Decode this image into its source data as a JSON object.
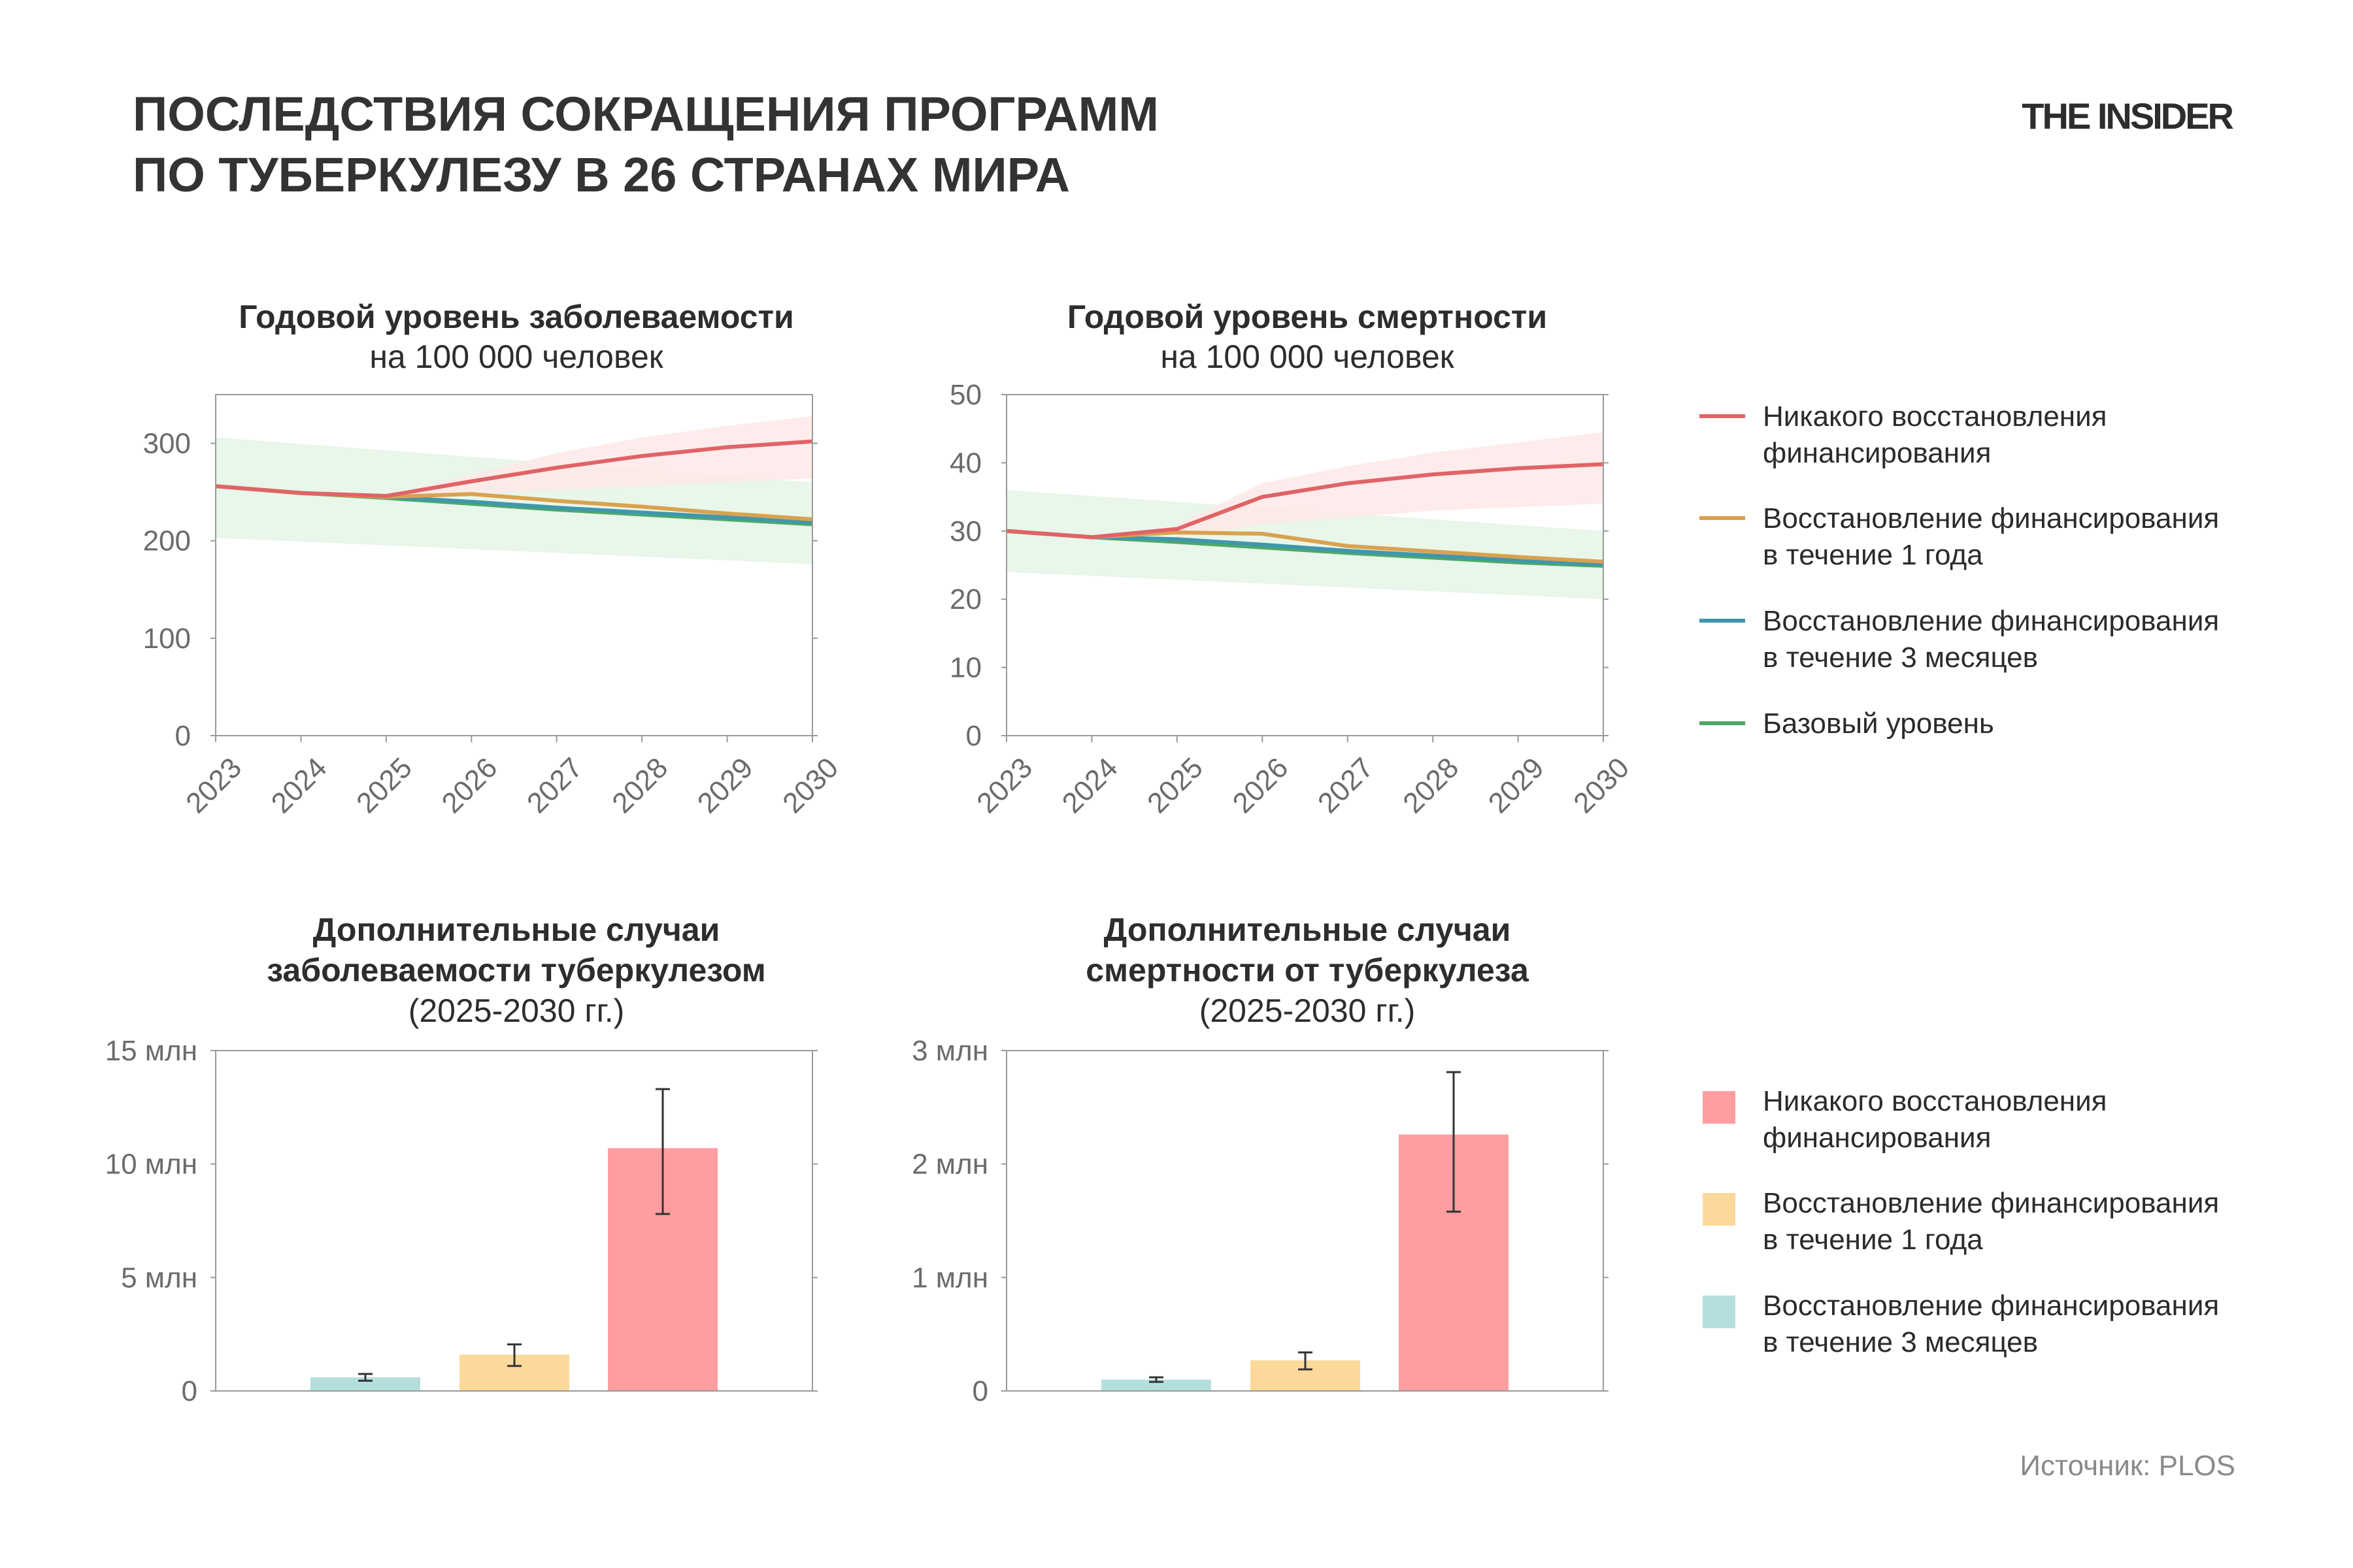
{
  "header": {
    "title_line1": "ПОСЛЕДСТВИЯ СОКРАЩЕНИЯ ПРОГРАММ",
    "title_line2": "ПО ТУБЕРКУЛЕЗУ В 26 СТРАНАХ МИРА",
    "brand": "THE INSIDER"
  },
  "footer": {
    "source": "Источник: PLOS"
  },
  "colors": {
    "red": "#e06366",
    "orange": "#d9a24f",
    "blue": "#3f97ad",
    "green": "#4ea866",
    "band_red": "#fde9e8",
    "band_green": "#e5f4e6",
    "bar_red": "#ff9ea0",
    "bar_orange": "#fcd99b",
    "bar_teal": "#b4dfdd",
    "axis": "#9a9a9a",
    "errorbar": "#333333"
  },
  "legend_lines": [
    {
      "line1": "Никакого восстановления",
      "line2": "финансирования",
      "color": "#e06366"
    },
    {
      "line1": "Восстановление финансирования",
      "line2": "в течение 1 года",
      "color": "#d9a24f"
    },
    {
      "line1": "Восстановление финансирования",
      "line2": "в течение 3 месяцев",
      "color": "#3f97ad"
    },
    {
      "line1": "Базовый уровень",
      "line2": "",
      "color": "#4ea866"
    }
  ],
  "legend_bars": [
    {
      "line1": "Никакого восстановления",
      "line2": "финансирования",
      "color": "#ff9ea0"
    },
    {
      "line1": "Восстановление финансирования",
      "line2": "в течение 1 года",
      "color": "#fcd99b"
    },
    {
      "line1": "Восстановление финансирования",
      "line2": "в течение 3 месяцев",
      "color": "#b4dfdd"
    }
  ],
  "chart_data": [
    {
      "type": "line",
      "title_line1": "Годовой уровень заболеваемости",
      "title_line2": "на 100 000 человек",
      "x": [
        2023,
        2024,
        2025,
        2026,
        2027,
        2028,
        2029,
        2030
      ],
      "x_tick_labels": [
        "2023",
        "2024",
        "2025",
        "2026",
        "2027",
        "2028",
        "2029",
        "2030"
      ],
      "ylim": [
        0,
        350
      ],
      "y_ticks": [
        0,
        100,
        200,
        300
      ],
      "y_tick_labels": [
        "0",
        "100",
        "200",
        "300"
      ],
      "grid": false,
      "bands": [
        {
          "color": "#e5f4e6",
          "x": [
            2023,
            2030
          ],
          "lower": [
            203,
            176
          ],
          "upper": [
            306,
            260
          ]
        },
        {
          "color": "#fde9e8",
          "x": [
            2025,
            2026,
            2027,
            2028,
            2029,
            2030
          ],
          "lower": [
            246,
            248,
            252,
            256,
            260,
            264
          ],
          "upper": [
            246,
            268,
            290,
            306,
            318,
            328
          ]
        }
      ],
      "series": [
        {
          "color": "#4ea866",
          "values": [
            256,
            249,
            244,
            238,
            232,
            227,
            222,
            217
          ]
        },
        {
          "color": "#3f97ad",
          "values": [
            256,
            249,
            245,
            240,
            234,
            229,
            224,
            219
          ]
        },
        {
          "color": "#d9a24f",
          "values": [
            256,
            249,
            245,
            248,
            241,
            235,
            228,
            222
          ]
        },
        {
          "color": "#e06366",
          "values": [
            256,
            249,
            246,
            261,
            275,
            287,
            296,
            302
          ]
        }
      ]
    },
    {
      "type": "line",
      "title_line1": "Годовой уровень смертности",
      "title_line2": "на 100 000 человек",
      "x": [
        2023,
        2024,
        2025,
        2026,
        2027,
        2028,
        2029,
        2030
      ],
      "x_tick_labels": [
        "2023",
        "2024",
        "2025",
        "2026",
        "2027",
        "2028",
        "2029",
        "2030"
      ],
      "ylim": [
        0,
        50
      ],
      "y_ticks": [
        0,
        10,
        20,
        30,
        40,
        50
      ],
      "y_tick_labels": [
        "0",
        "10",
        "20",
        "30",
        "40",
        "50"
      ],
      "grid": false,
      "bands": [
        {
          "color": "#e5f4e6",
          "x": [
            2023,
            2030
          ],
          "lower": [
            24,
            20
          ],
          "upper": [
            36,
            30
          ]
        },
        {
          "color": "#fde9e8",
          "x": [
            2025,
            2026,
            2027,
            2028,
            2029,
            2030
          ],
          "lower": [
            29,
            31,
            32,
            33,
            33.5,
            34
          ],
          "upper": [
            31,
            37,
            39.5,
            41.5,
            43,
            44.5
          ]
        }
      ],
      "series": [
        {
          "color": "#4ea866",
          "values": [
            30,
            29.1,
            28.4,
            27.6,
            26.8,
            26.1,
            25.4,
            24.9
          ]
        },
        {
          "color": "#3f97ad",
          "values": [
            30,
            29.1,
            28.8,
            28.0,
            27.1,
            26.4,
            25.7,
            25.1
          ]
        },
        {
          "color": "#d9a24f",
          "values": [
            30,
            29.1,
            29.8,
            29.6,
            27.8,
            27.0,
            26.2,
            25.5
          ]
        },
        {
          "color": "#e06366",
          "values": [
            30,
            29.1,
            30.3,
            35.0,
            37.0,
            38.3,
            39.2,
            39.8
          ]
        }
      ]
    },
    {
      "type": "bar",
      "title_line1": "Дополнительные случаи",
      "title_line2": "заболеваемости туберкулезом",
      "title_line3": "(2025-2030 гг.)",
      "ylim": [
        0,
        15
      ],
      "y_ticks": [
        0,
        5,
        10,
        15
      ],
      "y_tick_labels": [
        "0",
        "5 млн",
        "10 млн",
        "15 млн"
      ],
      "bars": [
        {
          "value": 0.6,
          "err_low": 0.45,
          "err_high": 0.75,
          "color": "#b4dfdd"
        },
        {
          "value": 1.6,
          "err_low": 1.1,
          "err_high": 2.05,
          "color": "#fcd99b"
        },
        {
          "value": 10.7,
          "err_low": 7.8,
          "err_high": 13.3,
          "color": "#ff9ea0"
        }
      ]
    },
    {
      "type": "bar",
      "title_line1": "Дополнительные случаи",
      "title_line2": "смертности от туберкулеза",
      "title_line3": "(2025-2030 гг.)",
      "ylim": [
        0,
        3
      ],
      "y_ticks": [
        0,
        1,
        2,
        3
      ],
      "y_tick_labels": [
        "0",
        "1 млн",
        "2 млн",
        "3 млн"
      ],
      "bars": [
        {
          "value": 0.1,
          "err_low": 0.08,
          "err_high": 0.12,
          "color": "#b4dfdd"
        },
        {
          "value": 0.27,
          "err_low": 0.19,
          "err_high": 0.34,
          "color": "#fcd99b"
        },
        {
          "value": 2.26,
          "err_low": 1.58,
          "err_high": 2.81,
          "color": "#ff9ea0"
        }
      ]
    }
  ]
}
